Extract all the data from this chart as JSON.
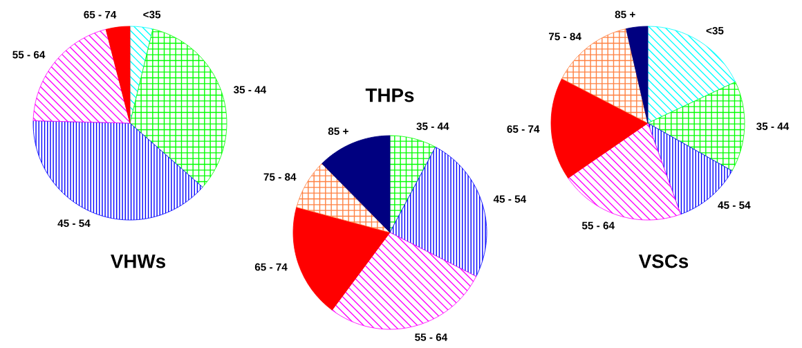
{
  "chart_data": [
    {
      "type": "pie",
      "title": "VHWs",
      "categories": [
        "<35",
        "35 - 44",
        "45 - 54",
        "55 - 64",
        "65 - 74"
      ],
      "values": [
        3.8,
        32.7,
        38.9,
        20.6,
        4.0
      ],
      "colors": [
        "#00ffff",
        "#00ff00",
        "#0000ff",
        "#ff00ff",
        "#ff0000"
      ]
    },
    {
      "type": "pie",
      "title": "THPs",
      "categories": [
        "35 - 44",
        "45 - 54",
        "55 - 64",
        "65 - 74",
        "75 - 84",
        "85 +"
      ],
      "values": [
        7.8,
        24.7,
        27.7,
        19.0,
        8.4,
        12.4
      ],
      "colors": [
        "#00ff00",
        "#0000ff",
        "#ff00ff",
        "#ff0000",
        "#ff8040",
        "#000080"
      ]
    },
    {
      "type": "pie",
      "title": "VSCs",
      "categories": [
        "<35",
        "35 - 44",
        "45 - 54",
        "55 - 64",
        "65 - 74",
        "75 - 84",
        "85 +"
      ],
      "values": [
        18.0,
        15.2,
        11.3,
        20.9,
        17.2,
        13.8,
        3.6
      ],
      "colors": [
        "#00ffff",
        "#00ff00",
        "#0000ff",
        "#ff00ff",
        "#ff0000",
        "#ff8040",
        "#000080"
      ]
    }
  ]
}
